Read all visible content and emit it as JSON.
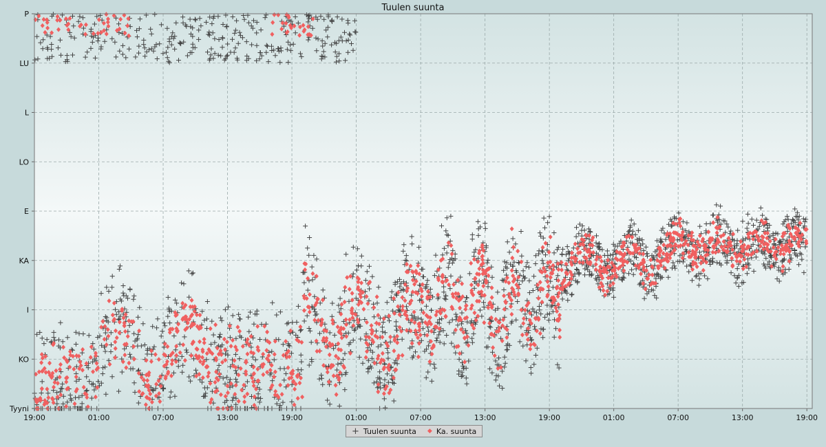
{
  "chart_data": {
    "type": "scatter",
    "title": "Tuulen suunta",
    "xlabel": "",
    "ylabel": "",
    "x_ticks": [
      "19:00",
      "01:00",
      "07:00",
      "13:00",
      "19:00",
      "01:00",
      "07:00",
      "13:00",
      "19:00",
      "01:00",
      "07:00",
      "13:00",
      "19:00"
    ],
    "x_range_hours": [
      0,
      72.5
    ],
    "y_ticks": [
      "Tyyni",
      "KO",
      "I",
      "KA",
      "E",
      "LO",
      "L",
      "LU",
      "P"
    ],
    "y_range": [
      0,
      8
    ],
    "grid": true,
    "legend_position": "bottom-center",
    "colors": {
      "tuulen_suunta": "#444444",
      "ka_suunta": "#f06060"
    },
    "series": [
      {
        "name": "Tuulen suunta",
        "marker": "plus",
        "description_points": [
          [
            0.5,
            7.8
          ],
          [
            1.5,
            7.4
          ],
          [
            2.5,
            7.6
          ],
          [
            3.5,
            7.2
          ],
          [
            4.5,
            7.5
          ],
          [
            6.0,
            7.3
          ],
          [
            8.0,
            7.0
          ],
          [
            10.0,
            6.9
          ],
          [
            12.0,
            7.2
          ],
          [
            14.0,
            6.8
          ],
          [
            16.0,
            7.4
          ],
          [
            18.0,
            7.1
          ],
          [
            20.0,
            7.6
          ],
          [
            22.0,
            7.0
          ],
          [
            24.0,
            7.3
          ],
          [
            27.0,
            7.5
          ],
          [
            30.0,
            7.2
          ],
          [
            1.0,
            2.0
          ],
          [
            3.0,
            0.8
          ],
          [
            5.0,
            1.5
          ],
          [
            7.0,
            1.0
          ],
          [
            9.0,
            2.5
          ],
          [
            11.0,
            1.8
          ],
          [
            13.0,
            2.2
          ],
          [
            15.0,
            1.5
          ],
          [
            17.0,
            1.2
          ],
          [
            19.0,
            1.0
          ],
          [
            21.0,
            1.6
          ],
          [
            23.0,
            2.0
          ],
          [
            25.0,
            2.2
          ],
          [
            27.0,
            2.6
          ],
          [
            29.0,
            2.4
          ],
          [
            31.0,
            2.0
          ],
          [
            33.0,
            1.8
          ],
          [
            35.0,
            2.3
          ],
          [
            37.0,
            2.8
          ],
          [
            39.0,
            2.9
          ],
          [
            41.0,
            3.2
          ],
          [
            43.0,
            3.0
          ],
          [
            45.0,
            3.3
          ],
          [
            47.0,
            3.5
          ],
          [
            49.0,
            3.6
          ],
          [
            51.0,
            3.8
          ],
          [
            53.0,
            3.5
          ],
          [
            55.0,
            3.9
          ],
          [
            57.0,
            3.7
          ],
          [
            59.0,
            3.6
          ],
          [
            61.0,
            3.4
          ],
          [
            63.0,
            3.7
          ],
          [
            65.0,
            3.5
          ],
          [
            67.0,
            3.3
          ],
          [
            69.0,
            3.4
          ],
          [
            71.0,
            3.6
          ]
        ]
      },
      {
        "name": "Ka. suunta",
        "marker": "diamond",
        "description_points": [
          [
            0.5,
            7.9
          ],
          [
            2.0,
            7.6
          ],
          [
            3.5,
            7.5
          ],
          [
            5.0,
            7.7
          ],
          [
            6.5,
            7.8
          ],
          [
            0.5,
            0.6
          ],
          [
            1.0,
            0.2
          ],
          [
            2.5,
            0.1
          ],
          [
            4.0,
            0.3
          ],
          [
            8.0,
            0.4
          ],
          [
            10.0,
            1.0
          ],
          [
            12.0,
            1.2
          ],
          [
            14.0,
            1.3
          ],
          [
            16.0,
            1.0
          ],
          [
            18.0,
            0.8
          ],
          [
            20.0,
            0.5
          ],
          [
            22.0,
            0.3
          ],
          [
            24.0,
            0.9
          ],
          [
            26.0,
            1.2
          ],
          [
            28.0,
            0.7
          ],
          [
            30.0,
            1.4
          ],
          [
            32.0,
            1.6
          ],
          [
            34.0,
            1.7
          ],
          [
            36.0,
            1.5
          ],
          [
            38.0,
            1.9
          ],
          [
            40.0,
            2.0
          ],
          [
            42.0,
            1.6
          ],
          [
            44.0,
            2.2
          ],
          [
            46.0,
            2.4
          ],
          [
            48.0,
            2.5
          ],
          [
            50.0,
            2.9
          ],
          [
            52.0,
            3.0
          ],
          [
            54.0,
            3.1
          ],
          [
            56.0,
            3.3
          ],
          [
            58.0,
            3.2
          ],
          [
            60.0,
            3.5
          ],
          [
            62.0,
            3.4
          ],
          [
            64.0,
            3.3
          ],
          [
            66.0,
            3.4
          ],
          [
            68.0,
            3.2
          ],
          [
            70.0,
            3.2
          ],
          [
            72.0,
            3.5
          ]
        ]
      }
    ]
  }
}
